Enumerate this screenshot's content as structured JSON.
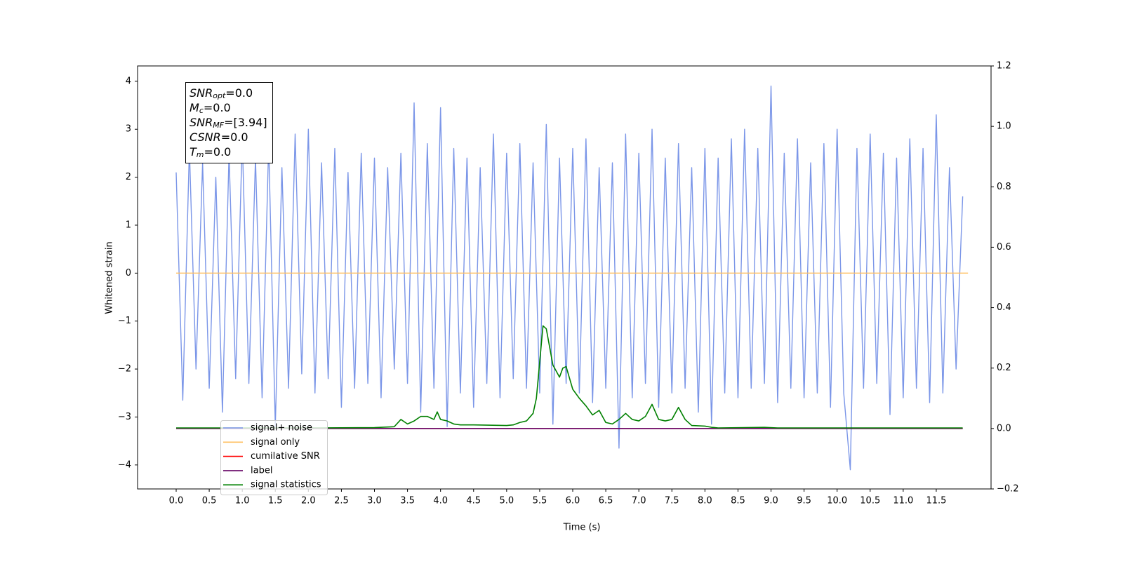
{
  "chart_data": {
    "type": "line",
    "xlabel": "Time (s)",
    "ylabel": "Whitened strain",
    "xlim": [
      -0.584,
      12.329
    ],
    "xticks": [
      {
        "value": 0,
        "label": "0.0"
      },
      0.5,
      {
        "value": 1,
        "label": "1.0"
      },
      1.5,
      {
        "value": 2,
        "label": "2.0"
      },
      2.5,
      {
        "value": 3,
        "label": "3.0"
      },
      3.5,
      {
        "value": 4,
        "label": "4.0"
      },
      4.5,
      {
        "value": 5,
        "label": "5.0"
      },
      5.5,
      {
        "value": 6,
        "label": "6.0"
      },
      6.5,
      {
        "value": 7,
        "label": "7.0"
      },
      7.5,
      {
        "value": 8,
        "label": "8.0"
      },
      8.5,
      {
        "value": 9,
        "label": "9.0"
      },
      9.5,
      {
        "value": 10,
        "label": "10.0"
      },
      10.5,
      {
        "value": 11,
        "label": "11.0"
      },
      11.5
    ],
    "ylim": [
      -4.5,
      4.32
    ],
    "yticks": [
      {
        "value": -4,
        "label": "−4"
      },
      {
        "value": -3,
        "label": "−3"
      },
      {
        "value": -2,
        "label": "−2"
      },
      {
        "value": -1,
        "label": "−1"
      },
      0,
      1,
      2,
      3,
      4
    ],
    "y2lim": [
      -0.2,
      1.2
    ],
    "y2ticks": [
      {
        "value": -0.2,
        "label": "−0.2"
      },
      {
        "value": 0,
        "label": "0.0"
      },
      0.2,
      0.4,
      0.6,
      0.8,
      {
        "value": 1,
        "label": "1.0"
      },
      1.2
    ],
    "annotation": [
      {
        "main": "SNR",
        "sub": "opt",
        "rest": "=0.0"
      },
      {
        "main": "M",
        "sub": "c",
        "rest": "=0.0"
      },
      {
        "main": "SNR",
        "sub": "MF",
        "rest": "=[3.94]"
      },
      {
        "main": "CSNR",
        "rest": "=0.0"
      },
      {
        "main": "T",
        "sub": "m",
        "rest": "=0.0"
      }
    ],
    "series": [
      {
        "name": "signal+ noise",
        "color": "#7b96e8",
        "axis": "y",
        "x": [
          0,
          0.1,
          0.2,
          0.3,
          0.4,
          0.5,
          0.6,
          0.7,
          0.8,
          0.9,
          1,
          1.1,
          1.2,
          1.3,
          1.4,
          1.5,
          1.6,
          1.7,
          1.8,
          1.9,
          2,
          2.1,
          2.2,
          2.3,
          2.4,
          2.5,
          2.6,
          2.7,
          2.8,
          2.9,
          3,
          3.1,
          3.2,
          3.3,
          3.4,
          3.5,
          3.6,
          3.7,
          3.8,
          3.9,
          4,
          4.1,
          4.2,
          4.3,
          4.4,
          4.5,
          4.6,
          4.7,
          4.8,
          4.9,
          5,
          5.1,
          5.2,
          5.3,
          5.4,
          5.5,
          5.6,
          5.7,
          5.8,
          5.9,
          6,
          6.1,
          6.2,
          6.3,
          6.4,
          6.5,
          6.6,
          6.7,
          6.8,
          6.9,
          7,
          7.1,
          7.2,
          7.3,
          7.4,
          7.5,
          7.6,
          7.7,
          7.8,
          7.9,
          8,
          8.1,
          8.2,
          8.3,
          8.4,
          8.5,
          8.6,
          8.7,
          8.8,
          8.9,
          9,
          9.1,
          9.2,
          9.3,
          9.4,
          9.5,
          9.6,
          9.7,
          9.8,
          9.9,
          10,
          10.1,
          10.2,
          10.3,
          10.4,
          10.5,
          10.6,
          10.7,
          10.8,
          10.9,
          11,
          11.1,
          11.2,
          11.3,
          11.4,
          11.5,
          11.6,
          11.7,
          11.8,
          11.9
        ],
        "values": [
          2.1,
          -2.65,
          2.6,
          -2.0,
          2.3,
          -2.4,
          2.0,
          -2.9,
          2.5,
          -2.2,
          2.8,
          -2.3,
          2.4,
          -2.6,
          2.7,
          -3.2,
          2.2,
          -2.4,
          2.9,
          -2.1,
          3.0,
          -2.5,
          2.3,
          -2.2,
          2.6,
          -2.8,
          2.1,
          -2.4,
          2.5,
          -2.3,
          2.4,
          -2.6,
          2.2,
          -2.0,
          2.5,
          -2.3,
          3.55,
          -2.9,
          2.7,
          -2.4,
          3.45,
          -3.2,
          2.6,
          -2.5,
          2.4,
          -2.8,
          2.2,
          -2.3,
          2.9,
          -2.6,
          2.5,
          -2.2,
          2.7,
          -2.4,
          2.3,
          -2.5,
          3.1,
          -3.15,
          2.4,
          -2.3,
          2.6,
          -2.5,
          2.8,
          -2.7,
          2.2,
          -2.4,
          2.3,
          -3.65,
          2.9,
          -2.6,
          2.5,
          -2.3,
          3.0,
          -2.8,
          2.4,
          -2.5,
          2.7,
          -2.4,
          2.2,
          -2.9,
          2.6,
          -3.15,
          2.4,
          -2.5,
          2.8,
          -2.6,
          3.0,
          -2.4,
          2.6,
          -2.3,
          3.9,
          -2.7,
          2.5,
          -2.4,
          2.8,
          -2.6,
          2.3,
          -2.5,
          2.7,
          -2.8,
          3.0,
          -2.5,
          -4.1,
          2.6,
          -2.4,
          2.9,
          -2.3,
          2.5,
          -2.95,
          2.4,
          -2.6,
          2.8,
          -2.4,
          2.6,
          -2.7,
          3.3,
          -2.5,
          2.2,
          -2.0,
          1.6
        ]
      },
      {
        "name": "signal only",
        "color": "#ffbf60",
        "axis": "y",
        "x": [
          0,
          11.98
        ],
        "values": [
          0,
          0
        ]
      },
      {
        "name": "cumilative SNR",
        "color": "#ff0000",
        "axis": "y2",
        "x": [
          0,
          11.9
        ],
        "values": [
          0,
          0
        ]
      },
      {
        "name": "label",
        "color": "#6a0a6a",
        "axis": "y2",
        "x": [
          0,
          11.9
        ],
        "values": [
          0,
          0
        ]
      },
      {
        "name": "signal statistics",
        "color": "#008000",
        "axis": "y2",
        "x": [
          0,
          1,
          2,
          3,
          3.3,
          3.4,
          3.5,
          3.6,
          3.7,
          3.8,
          3.9,
          3.95,
          4.0,
          4.1,
          4.2,
          4.3,
          4.5,
          5.0,
          5.1,
          5.2,
          5.3,
          5.4,
          5.45,
          5.55,
          5.6,
          5.7,
          5.8,
          5.85,
          5.9,
          6.0,
          6.1,
          6.2,
          6.3,
          6.4,
          6.5,
          6.6,
          6.7,
          6.8,
          6.9,
          7.0,
          7.1,
          7.2,
          7.3,
          7.4,
          7.5,
          7.6,
          7.7,
          7.8,
          8.0,
          8.1,
          8.2,
          8.9,
          9.1,
          11.9
        ],
        "values": [
          0.002,
          0.002,
          0.002,
          0.003,
          0.006,
          0.03,
          0.015,
          0.025,
          0.04,
          0.04,
          0.03,
          0.055,
          0.03,
          0.025,
          0.015,
          0.012,
          0.012,
          0.01,
          0.012,
          0.02,
          0.025,
          0.05,
          0.1,
          0.34,
          0.33,
          0.21,
          0.17,
          0.2,
          0.205,
          0.13,
          0.1,
          0.075,
          0.045,
          0.06,
          0.02,
          0.015,
          0.03,
          0.05,
          0.03,
          0.025,
          0.04,
          0.08,
          0.03,
          0.025,
          0.03,
          0.07,
          0.03,
          0.01,
          0.008,
          0.004,
          0.002,
          0.004,
          0.002,
          0.002
        ]
      }
    ]
  }
}
